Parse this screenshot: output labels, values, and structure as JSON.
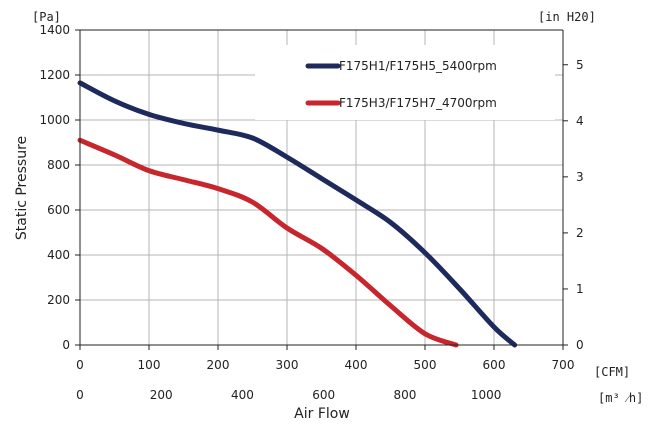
{
  "chart_data": {
    "type": "line",
    "ylabel": "Static Pressure",
    "xlabel": "Air Flow",
    "y_unit": "[Pa]",
    "y2_unit": "[in H20]",
    "x_unit": "[CFM]",
    "x2_unit": "[m³ ⁄h]",
    "xlim": [
      0,
      700
    ],
    "ylim": [
      0,
      1400
    ],
    "y2lim": [
      0,
      5.62
    ],
    "grid": true,
    "legend_position": "top-right",
    "x_ticks": [
      "0",
      "100",
      "200",
      "300",
      "400",
      "500",
      "600",
      "700"
    ],
    "x2_ticks": [
      "0",
      "200",
      "400",
      "600",
      "800",
      "1000"
    ],
    "y_ticks": [
      "0",
      "200",
      "400",
      "600",
      "800",
      "1000",
      "1200",
      "1400"
    ],
    "y2_ticks": [
      "0",
      "1",
      "2",
      "3",
      "4",
      "5"
    ],
    "series": [
      {
        "name": "F175H1/F175H5_5400rpm",
        "color": "#1f2a5c",
        "x": [
          0,
          50,
          100,
          150,
          200,
          250,
          300,
          350,
          400,
          450,
          500,
          550,
          600,
          630
        ],
        "y": [
          1165,
          1085,
          1025,
          985,
          955,
          920,
          835,
          740,
          645,
          545,
          410,
          250,
          80,
          0
        ]
      },
      {
        "name": "F175H3/F175H7_4700rpm",
        "color": "#c8262d",
        "x": [
          0,
          50,
          100,
          150,
          200,
          250,
          300,
          350,
          400,
          450,
          500,
          545
        ],
        "y": [
          910,
          845,
          775,
          735,
          695,
          635,
          520,
          430,
          310,
          175,
          50,
          0
        ]
      }
    ]
  }
}
